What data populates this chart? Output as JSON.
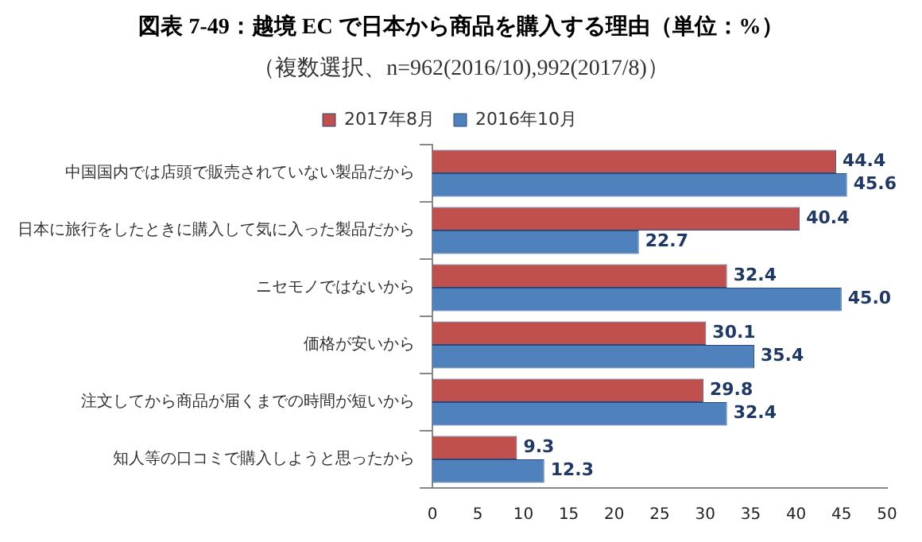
{
  "chart_data": {
    "type": "bar",
    "orientation": "horizontal",
    "title": "図表 7-49：越境 EC で日本から商品を購入する理由（単位：%）",
    "subtitle": "（複数選択、n=962(2016/10),992(2017/8)）",
    "categories": [
      "中国国内では店頭で販売されていない製品だから",
      "日本に旅行をしたときに購入して気に入った製品だから",
      "ニセモノではないから",
      "価格が安いから",
      "注文してから商品が届くまでの時間が短いから",
      "知人等の口コミで購入しようと思ったから"
    ],
    "series": [
      {
        "name": "2017年8月",
        "color": "#c0504d",
        "values": [
          44.4,
          40.4,
          32.4,
          30.1,
          29.8,
          9.3
        ],
        "value_labels": [
          "44.4",
          "40.4",
          "32.4",
          "30.1",
          "29.8",
          "9.3"
        ]
      },
      {
        "name": "2016年10月",
        "color": "#4f81bd",
        "values": [
          45.6,
          22.7,
          45.0,
          35.4,
          32.4,
          12.3
        ],
        "value_labels": [
          "45.6",
          "22.7",
          "45.0",
          "35.4",
          "32.4",
          "12.3"
        ]
      }
    ],
    "xlim": [
      0,
      50
    ],
    "xticks": [
      0,
      5,
      10,
      15,
      20,
      25,
      30,
      35,
      40,
      45,
      50
    ],
    "grid": false,
    "legend": "top"
  }
}
